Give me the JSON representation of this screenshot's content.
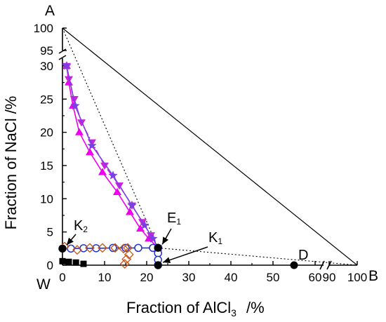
{
  "chart_data": {
    "type": "scatter",
    "xlabel": "Fraction of AlCl",
    "xlabel_sub": "3",
    "xlabel_unit": "/%",
    "ylabel": "Fraction of NaCl   /%",
    "x_ticks": [
      "0",
      "10",
      "20",
      "30",
      "40",
      "50",
      "60",
      "90",
      "100"
    ],
    "y_ticks": [
      "0",
      "5",
      "10",
      "15",
      "20",
      "25",
      "30",
      "95",
      "100"
    ],
    "x_axis": {
      "segments": [
        {
          "from": 0,
          "to": 60
        },
        {
          "from": 90,
          "to": 100
        }
      ],
      "break_between": [
        60,
        90
      ]
    },
    "y_axis": {
      "segments": [
        {
          "from": 0,
          "to": 31
        },
        {
          "from": 95,
          "to": 100
        }
      ],
      "break_between": [
        31,
        95
      ]
    },
    "grid": false,
    "corners": {
      "W": "W",
      "A": "A",
      "B": "B"
    },
    "point_labels": [
      {
        "label": "K",
        "sub": "2",
        "point": [
          0,
          2.5
        ]
      },
      {
        "label": "E",
        "sub": "1",
        "point": [
          22.7,
          2.6
        ]
      },
      {
        "label": "K",
        "sub": "1",
        "point": [
          22.7,
          0
        ]
      },
      {
        "label": "D",
        "sub": "",
        "point": [
          55,
          0
        ]
      }
    ],
    "series": [
      {
        "color": "#ee00ee",
        "style": "solid line, upward triangles",
        "x": [
          1.0,
          1.5,
          2.5,
          4.0,
          6.5,
          9.5,
          13.0,
          16.0,
          18.5,
          20.5,
          22.7
        ],
        "y": [
          30.0,
          27.5,
          24.0,
          20.0,
          17.0,
          14.0,
          11.0,
          8.0,
          5.5,
          4.0,
          2.6
        ]
      },
      {
        "color": "#cc22dd",
        "style": "dash-dot line, downward triangles",
        "x": [
          1.0,
          1.5,
          2.8,
          4.5,
          7.0,
          10.0,
          13.5,
          16.5,
          19.0,
          21.0,
          22.7
        ],
        "y": [
          30.0,
          28.0,
          25.0,
          21.5,
          18.5,
          15.0,
          12.0,
          9.0,
          6.5,
          4.5,
          2.6
        ]
      },
      {
        "color": "#7b3fe4",
        "style": "solid line, stars",
        "x": [
          1.0,
          3.0,
          7.0,
          12.0,
          16.5,
          19.5,
          21.5,
          22.7
        ],
        "y": [
          30.0,
          24.0,
          18.0,
          13.5,
          9.0,
          6.0,
          4.0,
          2.6
        ]
      },
      {
        "color": "#2233cc",
        "style": "solid line, open circles",
        "x": [
          0,
          2.0,
          5.0,
          8.0,
          12.0,
          15.0,
          18.0,
          21.5,
          22.7
        ],
        "y": [
          2.5,
          2.5,
          2.55,
          2.55,
          2.6,
          2.6,
          2.6,
          2.6,
          2.6
        ]
      },
      {
        "color": "#2233cc",
        "style": "solid line, open circles (vertical)",
        "x": [
          22.7,
          22.7,
          22.7,
          22.7
        ],
        "y": [
          2.6,
          1.8,
          0.8,
          0.0
        ]
      },
      {
        "color": "#cc5511",
        "style": "open diamonds",
        "x": [
          0.5,
          3.5,
          6.5,
          9.5,
          12.5,
          14.5,
          15.5,
          15.8,
          15.2,
          14.8
        ],
        "y": [
          2.8,
          2.3,
          2.6,
          2.6,
          2.6,
          2.5,
          2.6,
          1.6,
          0.9,
          0.2
        ]
      },
      {
        "color": "#000000",
        "style": "filled squares",
        "x": [
          0.0,
          1.5,
          3.2,
          5.0
        ],
        "y": [
          0.6,
          0.5,
          0.4,
          0.2
        ]
      },
      {
        "color": "#000000",
        "style": "filled circles (invariant points)",
        "x": [
          0,
          22.7,
          22.7,
          55
        ],
        "y": [
          2.5,
          2.6,
          0,
          0
        ]
      }
    ],
    "reference_lines": [
      {
        "style": "solid",
        "from": "A",
        "to": "B"
      },
      {
        "style": "dotted",
        "from": "A",
        "to": [
          22.7,
          2.6
        ]
      },
      {
        "style": "dotted",
        "from": [
          22.7,
          2.6
        ],
        "to": "B"
      }
    ]
  }
}
